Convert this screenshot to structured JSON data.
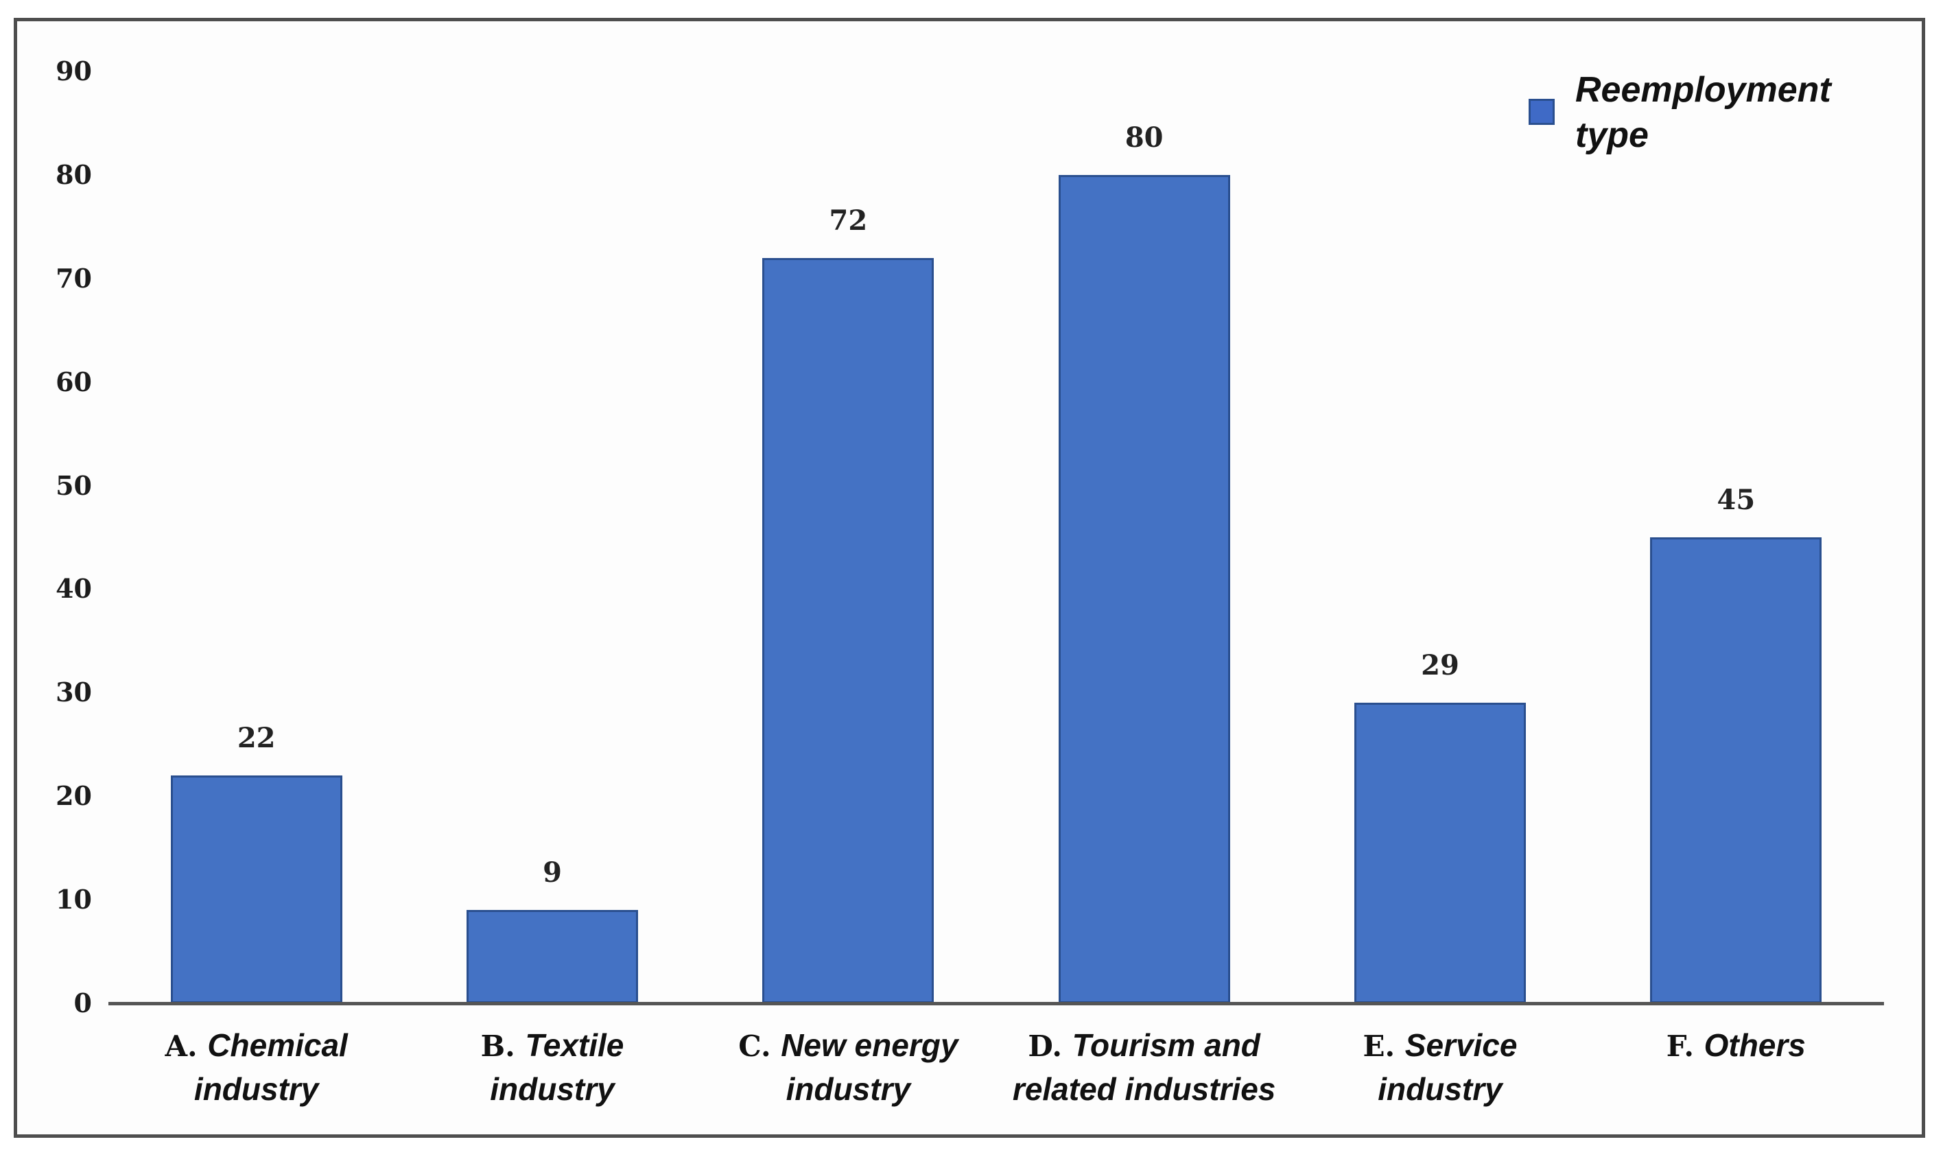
{
  "chart_data": {
    "type": "bar",
    "title": "",
    "xlabel": "",
    "ylabel": "",
    "categories": [
      "A. Chemical industry",
      "B. Textile industry",
      "C. New energy industry",
      "D. Tourism and related industries",
      "E. Service industry",
      "F. Others"
    ],
    "values": [
      22,
      9,
      72,
      80,
      29,
      45
    ],
    "series": [
      {
        "name": "Reemployment type",
        "values": [
          22,
          9,
          72,
          80,
          29,
          45
        ]
      }
    ],
    "data_labels": [
      "22",
      "9",
      "72",
      "80",
      "29",
      "45"
    ],
    "ylim": [
      0,
      90
    ],
    "yticks": [
      0,
      10,
      20,
      30,
      40,
      50,
      60,
      70,
      80,
      90
    ],
    "grid": false,
    "legend_position": "top-right",
    "bar_color": "#4472c4",
    "bar_border_color": "#2a4f8f",
    "category_label_lines": [
      {
        "prefix": "A.",
        "line1": "Chemical",
        "line2": "industry"
      },
      {
        "prefix": "B.",
        "line1": "Textile",
        "line2": "industry"
      },
      {
        "prefix": "C.",
        "line1": "New energy",
        "line2": "industry"
      },
      {
        "prefix": "D.",
        "line1": "Tourism and",
        "line2": "related industries"
      },
      {
        "prefix": "E.",
        "line1": "Service",
        "line2": "industry"
      },
      {
        "prefix": "F.",
        "line1": "Others",
        "line2": ""
      }
    ]
  },
  "legend": {
    "label": "Reemployment type",
    "swatch_color": "#3f6ac6"
  }
}
